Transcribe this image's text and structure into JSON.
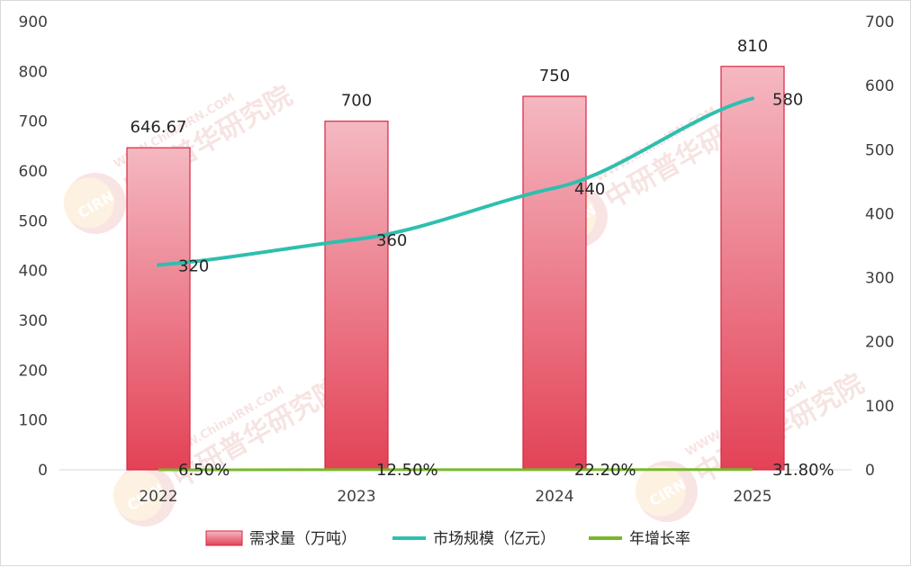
{
  "watermark": {
    "brand_cn": "中研普华研究院",
    "site": "WWW.ChinaIRN.COM",
    "logo": "CIRN"
  },
  "chart_data": {
    "type": "bar",
    "categories": [
      "2022",
      "2023",
      "2024",
      "2025"
    ],
    "title": "",
    "xlabel": "",
    "ylabel": "",
    "ylim": [
      0,
      900
    ],
    "y2lim": [
      0,
      700
    ],
    "yticks": [
      "0",
      "100",
      "200",
      "300",
      "400",
      "500",
      "600",
      "700",
      "800",
      "900"
    ],
    "y2ticks": [
      "0",
      "100",
      "200",
      "300",
      "400",
      "500",
      "600",
      "700"
    ],
    "grid": false,
    "legend_position": "bottom",
    "series": [
      {
        "name": "需求量（万吨）",
        "kind": "bar",
        "axis": "left",
        "values": [
          646.67,
          700,
          750,
          810
        ],
        "labels": [
          "646.67",
          "700",
          "750",
          "810"
        ],
        "color": "#e8495f"
      },
      {
        "name": "市场规模（亿元）",
        "kind": "line",
        "axis": "right",
        "values": [
          320,
          360,
          440,
          580
        ],
        "labels": [
          "320",
          "360",
          "440",
          "580"
        ],
        "color": "#2ebfae"
      },
      {
        "name": "年增长率",
        "kind": "line",
        "axis": "right",
        "values": [
          0.065,
          0.125,
          0.222,
          0.318
        ],
        "labels": [
          "6.50%",
          "12.50%",
          "22.20%",
          "31.80%"
        ],
        "color": "#76b82a"
      }
    ]
  }
}
